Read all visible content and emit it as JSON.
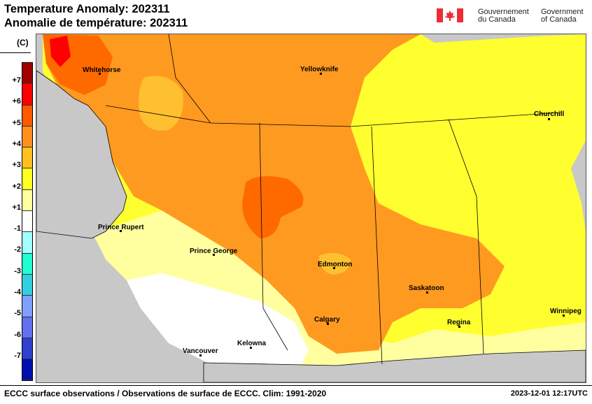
{
  "header": {
    "title_en": "Temperature Anomaly: 202311",
    "title_fr": "Anomalie de température: 202311"
  },
  "logo": {
    "fr": [
      "Gouvernement",
      "du Canada"
    ],
    "en": [
      "Government",
      "of Canada"
    ],
    "flag_color": "#eb2d37"
  },
  "legend": {
    "unit": "(C)",
    "colors": [
      "#a00000",
      "#ff0000",
      "#ff5a00",
      "#ff9020",
      "#ffc020",
      "#ffff20",
      "#ffffa0",
      "#ffffff",
      "#a0ffff",
      "#20ffd0",
      "#30d0e0",
      "#80a0ff",
      "#6070f0",
      "#3040d0",
      "#0010b0"
    ],
    "labels": [
      "+7",
      "+6",
      "+5",
      "+4",
      "+3",
      "+2",
      "+1",
      "-1",
      "-2",
      "-3",
      "-4",
      "-5",
      "-6",
      "-7"
    ]
  },
  "map": {
    "cities": [
      "Whitehorse",
      "Yellowknife",
      "Churchill",
      "Prince Rupert",
      "Prince George",
      "Edmonton",
      "Saskatoon",
      "Calgary",
      "Regina",
      "Winnipeg",
      "Vancouver",
      "Kelowna"
    ]
  },
  "footer": {
    "source": "ECCC surface observations / Observations de surface de ECCC. Clim: 1991-2020",
    "timestamp": "2023-12-01 12:17UTC"
  }
}
